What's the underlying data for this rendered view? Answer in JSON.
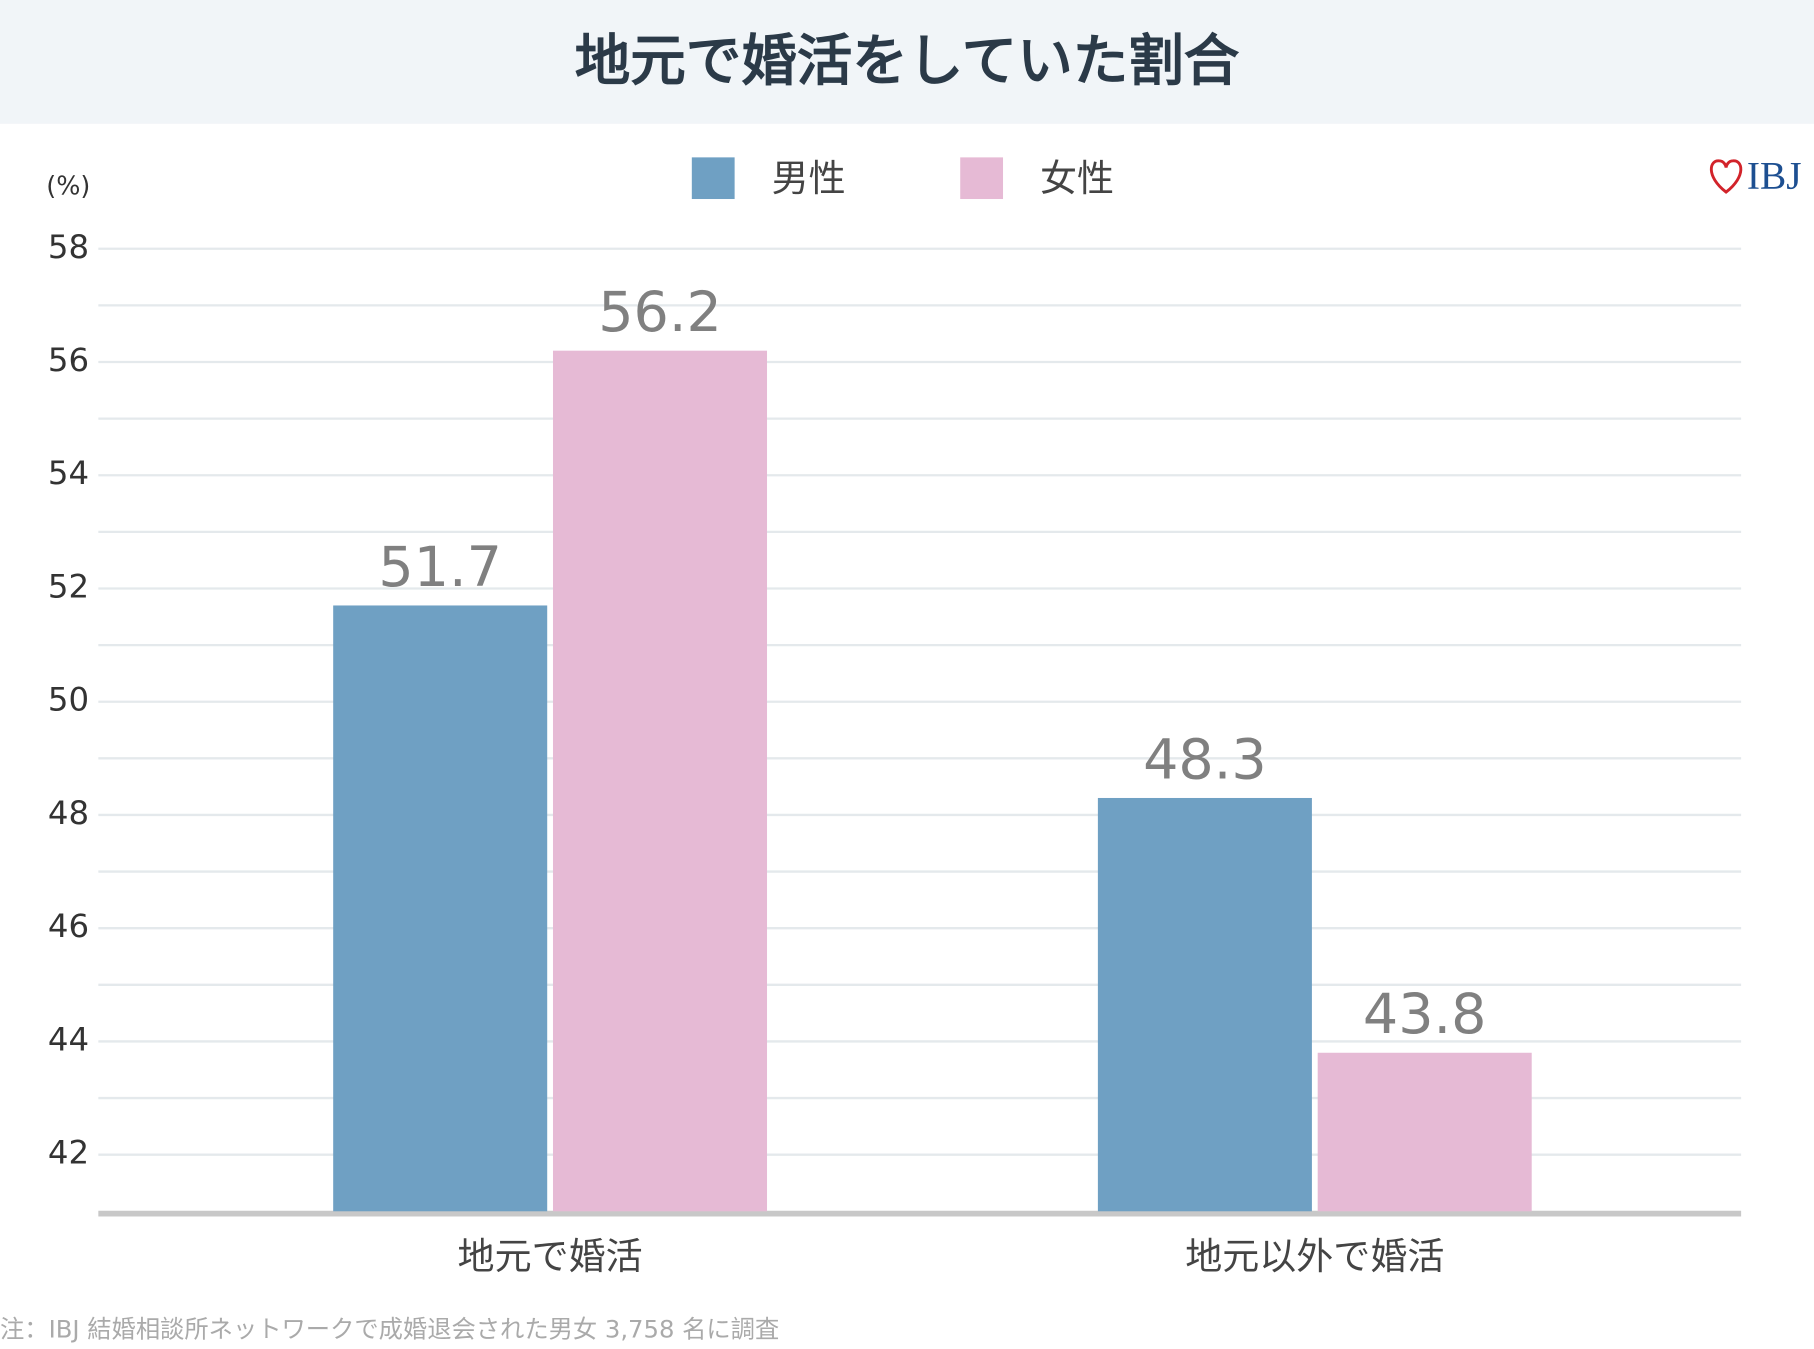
{
  "chart_data": {
    "type": "bar",
    "title": "地元で婚活をしていた割合",
    "y_unit": "(%)",
    "logo": "IBJ",
    "note": "注：IBJ 結婚相談所ネットワークで成婚退会された男女 3,758 名に調査",
    "categories": [
      "地元で婚活",
      "地元以外で婚活"
    ],
    "series": [
      {
        "name": "男性",
        "color": "#6fa0c3",
        "values": [
          51.7,
          48.3
        ]
      },
      {
        "name": "女性",
        "color": "#e6bad5",
        "values": [
          56.2,
          43.8
        ]
      }
    ],
    "ylim": [
      41,
      58
    ],
    "yticks": [
      42,
      44,
      46,
      48,
      50,
      52,
      54,
      56,
      58
    ],
    "minor_yticks": [
      43,
      45,
      47,
      49,
      51,
      53,
      55,
      57
    ],
    "grid": true
  }
}
